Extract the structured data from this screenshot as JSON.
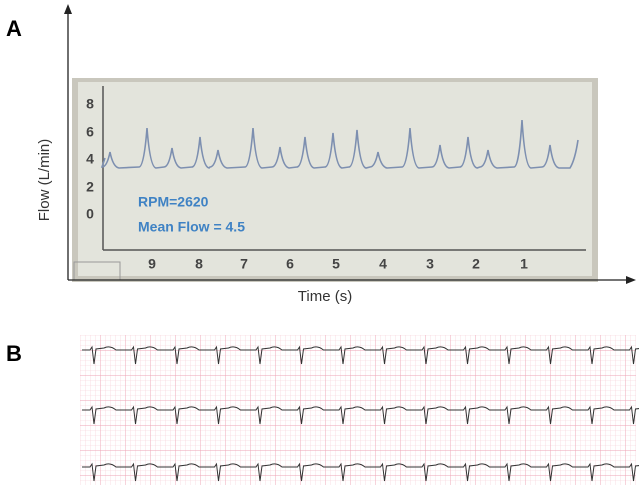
{
  "panels": [
    {
      "label": "A",
      "y_axis_label": "Flow (L/min)",
      "x_axis_label": "Time (s)",
      "screen": {
        "y_ticks": [
          "8",
          "6",
          "4",
          "2",
          "0"
        ],
        "x_ticks": [
          "9",
          "8",
          "7",
          "6",
          "5",
          "4",
          "3",
          "2",
          "1"
        ],
        "annotations": [
          "RPM=2620",
          "Mean Flow = 4.5"
        ]
      }
    },
    {
      "label": "B"
    }
  ]
}
